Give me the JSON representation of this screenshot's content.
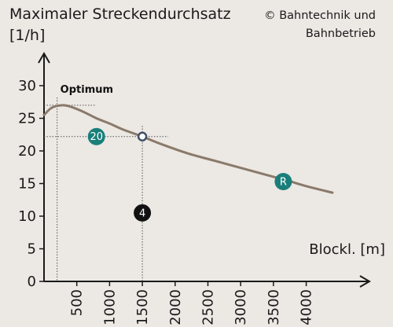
{
  "title_line1": "Maximaler Streckendurchsatz",
  "title_line2": "[1/h]",
  "copyright_line1": "© Bahntechnik und",
  "copyright_line2": "Bahnbetrieb",
  "colors": {
    "background": "#ece8e4",
    "curve": "#8a7a6a",
    "teal": "#1a7f7a",
    "black_badge": "#111111",
    "marker_stroke": "#3f5068"
  },
  "chart_data": {
    "type": "line",
    "title": "Maximaler Streckendurchsatz",
    "ylabel": "[1/h]",
    "xlabel": "Blockl. [m]",
    "xlim": [
      0,
      4800
    ],
    "ylim": [
      0,
      33
    ],
    "x_ticks": [
      500,
      1000,
      1500,
      2000,
      2500,
      3000,
      3500,
      4000
    ],
    "y_ticks": [
      0,
      5,
      10,
      15,
      20,
      25,
      30
    ],
    "series": [
      {
        "x": [
          0,
          100,
          200,
          300,
          400,
          600,
          800,
          1000,
          1200,
          1500,
          1800,
          2200,
          2600,
          3000,
          3400,
          3700,
          4000,
          4400
        ],
        "y": [
          25.5,
          26.5,
          26.9,
          27.0,
          26.8,
          26.0,
          25.0,
          24.2,
          23.3,
          22.2,
          21.0,
          19.6,
          18.5,
          17.4,
          16.3,
          15.5,
          14.6,
          13.6
        ]
      }
    ],
    "annotations": {
      "optimum": {
        "label": "Optimum",
        "x": 200,
        "y": 27
      },
      "marker_point": {
        "x": 1500,
        "y": 22.2
      },
      "badge_20": {
        "label": "20",
        "x": 800,
        "y": 22.2
      },
      "badge_4": {
        "label": "4",
        "x": 1500,
        "y": 10.5
      },
      "badge_R": {
        "label": "R",
        "x": 3650,
        "y": 15.3
      }
    }
  }
}
